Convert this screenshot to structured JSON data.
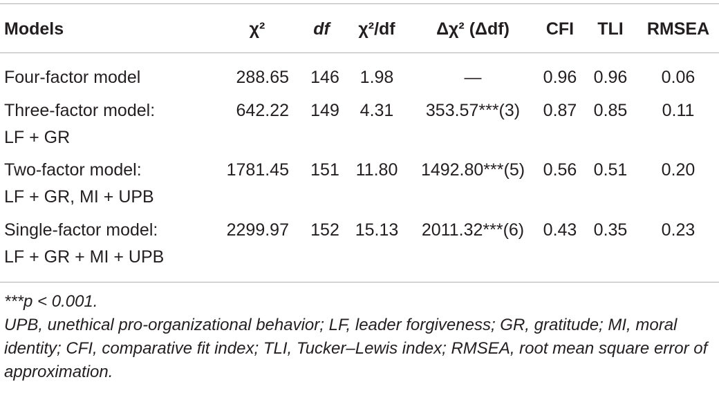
{
  "table": {
    "header": [
      "Models",
      "χ²",
      "df",
      "χ²/df",
      "Δχ² (Δdf)",
      "CFI",
      "TLI",
      "RMSEA"
    ],
    "rows": [
      {
        "name": [
          "Four-factor model"
        ],
        "cells": [
          "288.65",
          "146",
          "1.98",
          "—",
          "0.96",
          "0.96",
          "0.06"
        ]
      },
      {
        "name": [
          "Three-factor model:",
          "LF + GR"
        ],
        "cells": [
          "642.22",
          "149",
          "4.31",
          "353.57***(3)",
          "0.87",
          "0.85",
          "0.11"
        ]
      },
      {
        "name": [
          "Two-factor model:",
          "LF + GR, MI + UPB"
        ],
        "cells": [
          "1781.45",
          "151",
          "11.80",
          "1492.80***(5)",
          "0.56",
          "0.51",
          "0.20"
        ]
      },
      {
        "name": [
          "Single-factor model:",
          "LF + GR + MI + UPB"
        ],
        "cells": [
          "2299.97",
          "152",
          "15.13",
          "2011.32***(6)",
          "0.43",
          "0.35",
          "0.23"
        ]
      }
    ],
    "notes": [
      "***p < 0.001.",
      "UPB, unethical pro-organizational behavior; LF, leader forgiveness; GR, gratitude; MI, moral identity; CFI, comparative fit index; TLI, Tucker–Lewis index; RMSEA, root mean square error of approximation."
    ]
  }
}
